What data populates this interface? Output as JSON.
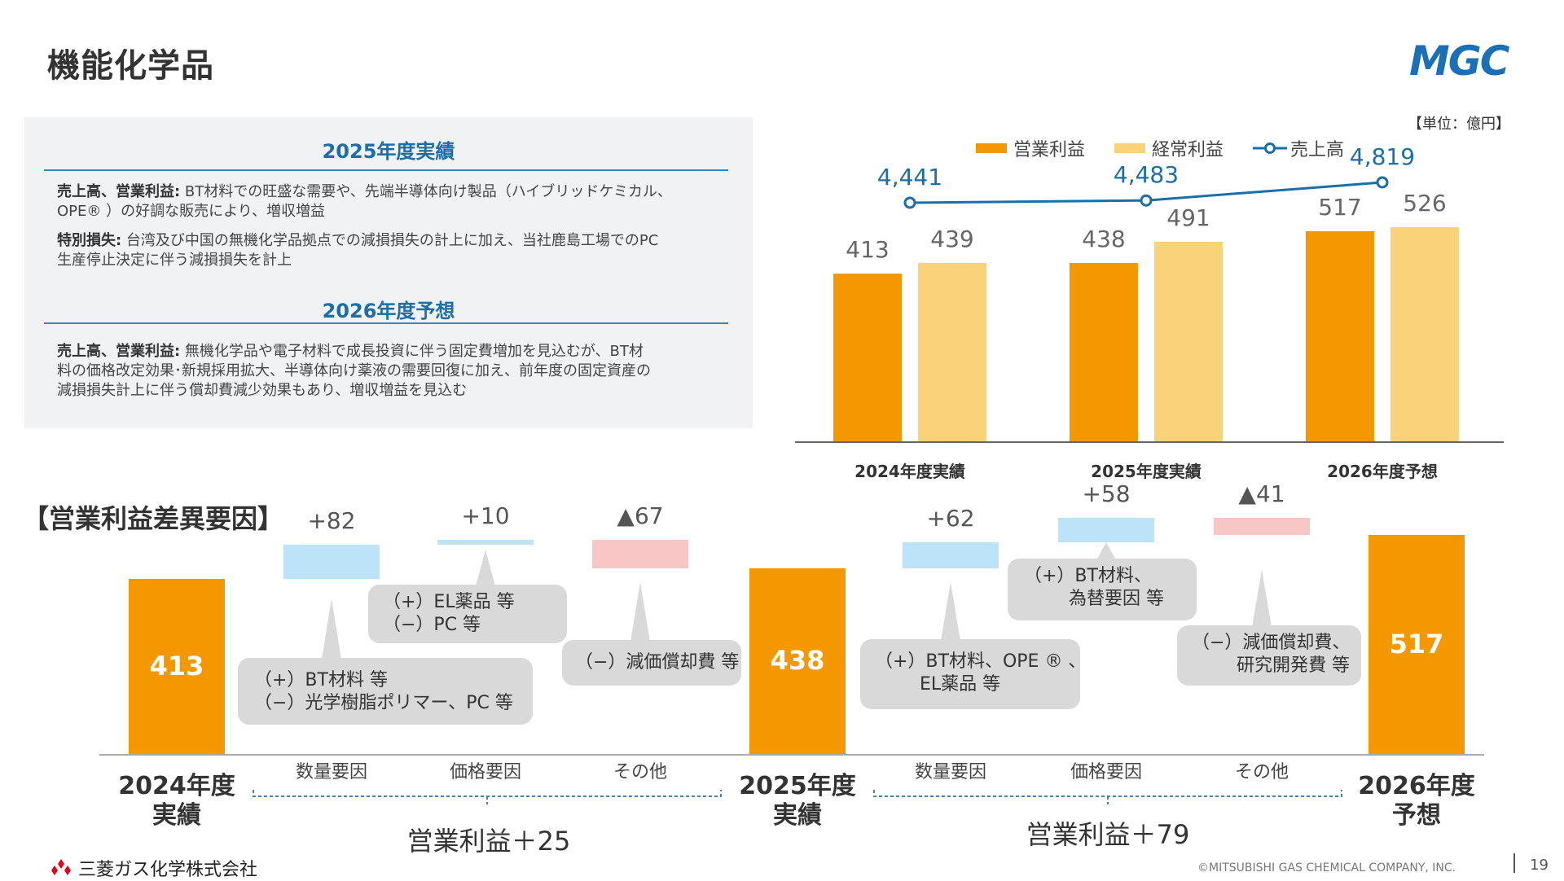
{
  "page": {
    "title": "機能化学品",
    "logo": "MGC",
    "unit": "【単位：億円】",
    "company": "三菱ガス化学株式会社",
    "copyright": "©MITSUBISHI GAS CHEMICAL COMPANY, INC.",
    "page_number": "19"
  },
  "summary": {
    "h2025": "2025年度実績",
    "p2025_1_label": "売上高、営業利益:",
    "p2025_1_text_a": " BT材料での旺盛な需要や、先端半導体向け製品（ハイブリッドケミカル、",
    "p2025_1_text_b": "OPE® ）の好調な販売により、増収増益",
    "p2025_2_label": "特別損失:",
    "p2025_2_text_a": " 台湾及び中国の無機化学品拠点での減損損失の計上に加え、当社鹿島工場でのPC",
    "p2025_2_text_b": "生産停止決定に伴う減損損失を計上",
    "h2026": "2026年度予想",
    "p2026_label": "売上高、営業利益:",
    "p2026_text_a": " 無機化学品や電子材料で成長投資に伴う固定費増加を見込むが、BT材",
    "p2026_text_b": "料の価格改定効果･新規採用拡大、半導体向け薬液の需要回復に加え、前年度の固定資産の",
    "p2026_text_c": "減損損失計上に伴う償却費減少効果もあり、増収増益を見込む"
  },
  "chart_data": {
    "type": "bar",
    "categories": [
      "2024年度実績",
      "2025年度実績",
      "2026年度予想"
    ],
    "series": [
      {
        "name": "営業利益",
        "values": [
          413,
          438,
          517
        ],
        "color": "#f39800",
        "labels": [
          "413",
          "438",
          "517"
        ]
      },
      {
        "name": "経常利益",
        "values": [
          439,
          491,
          526
        ],
        "color": "#f9d27a",
        "labels": [
          "439",
          "491",
          "526"
        ]
      },
      {
        "name": "売上高",
        "type": "line",
        "values": [
          4441,
          4483,
          4819
        ],
        "color": "#1a6fa8",
        "labels": [
          "4,441",
          "4,483",
          "4,819"
        ]
      }
    ],
    "ylim": [
      0,
      600
    ]
  },
  "waterfall": {
    "section_title": "【営業利益差異要因】",
    "start": {
      "value": 413,
      "label": "413",
      "period": [
        "2024年度",
        "実績"
      ]
    },
    "mid": {
      "value": 438,
      "label": "438",
      "period": [
        "2025年度",
        "実績"
      ]
    },
    "end": {
      "value": 517,
      "label": "517",
      "period": [
        "2026年度",
        "予想"
      ]
    },
    "steps1": [
      {
        "factor": "数量要因",
        "delta": 82,
        "label": "+82",
        "note": [
          "（+）BT材料 等",
          "（−）光学樹脂ポリマー、PC 等"
        ]
      },
      {
        "factor": "価格要因",
        "delta": 10,
        "label": "+10",
        "note": [
          "（+）EL薬品 等",
          "（−）PC 等"
        ]
      },
      {
        "factor": "その他",
        "delta": -67,
        "label": "▲67",
        "note": [
          "（−）減価償却費 等"
        ]
      }
    ],
    "steps2": [
      {
        "factor": "数量要因",
        "delta": 62,
        "label": "+62",
        "note": [
          "（+）BT材料、OPE ® 、",
          "EL薬品 等"
        ]
      },
      {
        "factor": "価格要因",
        "delta": 58,
        "label": "+58",
        "note": [
          "（+）BT材料、",
          "為替要因 等"
        ]
      },
      {
        "factor": "その他",
        "delta": -41,
        "label": "▲41",
        "note": [
          "（−）減価償却費、",
          "研究開発費 等"
        ]
      }
    ],
    "total1": "営業利益＋25",
    "total2": "営業利益＋79",
    "colors": {
      "base": "#f39800",
      "plus": "#bde3f8",
      "minus": "#f9c6c6"
    }
  }
}
